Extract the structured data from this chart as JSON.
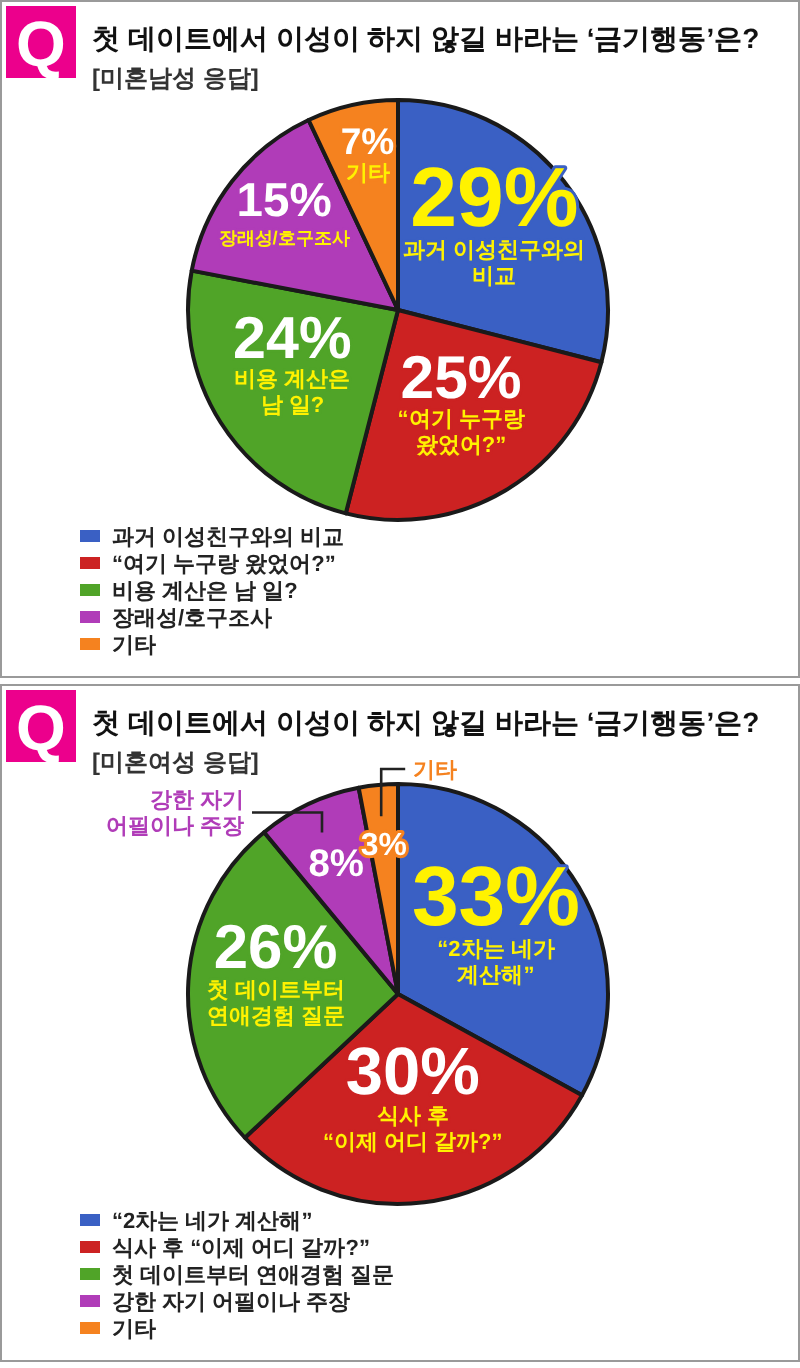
{
  "chart_data": [
    {
      "type": "pie",
      "title": "첫 데이트에서 이성이 하지 않길 바라는 ‘금기행동’은?",
      "subtitle": "[미혼남성 응답]",
      "categories": [
        "과거 이성친구와의 비교",
        "“여기 누구랑 왔었어?”",
        "비용 계산은 남 일?",
        "장래성/호구조사",
        "기타"
      ],
      "values": [
        29,
        25,
        24,
        15,
        7
      ],
      "colors": [
        "#3a60c4",
        "#cc2222",
        "#50a428",
        "#b03cb8",
        "#f5821f"
      ],
      "value_labels": [
        "29%",
        "25%",
        "24%",
        "15%",
        "7%"
      ],
      "legend": "bottom left",
      "annotations": [
        "Q"
      ]
    },
    {
      "type": "pie",
      "title": "첫 데이트에서 이성이 하지 않길 바라는 ‘금기행동’은?",
      "subtitle": "[미혼여성 응답]",
      "categories": [
        "“2차는 네가 계산해”",
        "식사 후 “이제 어디 갈까?”",
        "첫 데이트부터 연애경험 질문",
        "강한 자기 어필이나 주장",
        "기타"
      ],
      "values": [
        33,
        30,
        26,
        8,
        3
      ],
      "colors": [
        "#3a60c4",
        "#cc2222",
        "#50a428",
        "#b03cb8",
        "#f5821f"
      ],
      "value_labels": [
        "33%",
        "30%",
        "26%",
        "8%",
        "3%"
      ],
      "legend": "bottom left",
      "annotations": [
        "Q"
      ]
    }
  ]
}
